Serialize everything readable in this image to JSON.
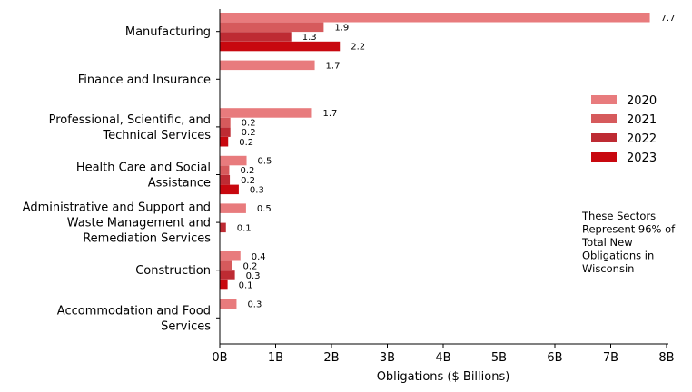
{
  "chart_data": {
    "type": "bar",
    "orientation": "horizontal",
    "categories": [
      "Manufacturing",
      "Finance and Insurance",
      "Professional, Scientific, and Technical Services",
      "Health Care and Social Assistance",
      "Administrative and Support and Waste Management and Remediation Services",
      "Construction",
      "Accommodation and Food Services"
    ],
    "category_lines": [
      [
        "Manufacturing"
      ],
      [
        "Finance and Insurance"
      ],
      [
        "Professional, Scientific, and",
        "Technical Services"
      ],
      [
        "Health Care and Social",
        "Assistance"
      ],
      [
        "Administrative and Support and",
        "Waste Management and",
        "Remediation Services"
      ],
      [
        "Construction"
      ],
      [
        "Accommodation and Food",
        "Services"
      ]
    ],
    "series": [
      {
        "name": "2020",
        "color": "#e87b7d",
        "values": [
          7.7,
          1.7,
          1.65,
          0.48,
          0.47,
          0.37,
          0.3
        ],
        "labels": [
          "7.7",
          "1.7",
          "1.7",
          "0.5",
          "0.5",
          "0.4",
          "0.3"
        ]
      },
      {
        "name": "2021",
        "color": "#d65a5c",
        "values": [
          1.86,
          null,
          0.19,
          0.17,
          null,
          0.22,
          null
        ],
        "labels": [
          "1.9",
          null,
          "0.2",
          "0.2",
          null,
          "0.2",
          null
        ]
      },
      {
        "name": "2022",
        "color": "#be2b33",
        "values": [
          1.28,
          null,
          0.19,
          0.18,
          0.11,
          0.27,
          null
        ],
        "labels": [
          "1.3",
          null,
          "0.2",
          "0.2",
          "0.1",
          "0.3",
          null
        ]
      },
      {
        "name": "2023",
        "color": "#c8080f",
        "values": [
          2.15,
          null,
          0.15,
          0.34,
          null,
          0.14,
          null
        ],
        "labels": [
          "2.2",
          null,
          "0.2",
          "0.3",
          null,
          "0.1",
          null
        ]
      }
    ],
    "xlabel": "Obligations ($ Billions)",
    "ylabel": "",
    "xlim": [
      0,
      8
    ],
    "xticks": [
      {
        "value": 0,
        "label": "0B"
      },
      {
        "value": 1,
        "label": "1B"
      },
      {
        "value": 2,
        "label": "2B"
      },
      {
        "value": 3,
        "label": "3B"
      },
      {
        "value": 4,
        "label": "4B"
      },
      {
        "value": 5,
        "label": "5B"
      },
      {
        "value": 6,
        "label": "6B"
      },
      {
        "value": 7,
        "label": "7B"
      },
      {
        "value": 8,
        "label": "8B"
      }
    ],
    "legend": {
      "placement": "right",
      "entries": [
        "2020",
        "2021",
        "2022",
        "2023"
      ]
    },
    "annotation": [
      "These Sectors",
      "Represent 96% of",
      "Total New",
      "Obligations in",
      "Wisconsin"
    ],
    "grid": false
  }
}
